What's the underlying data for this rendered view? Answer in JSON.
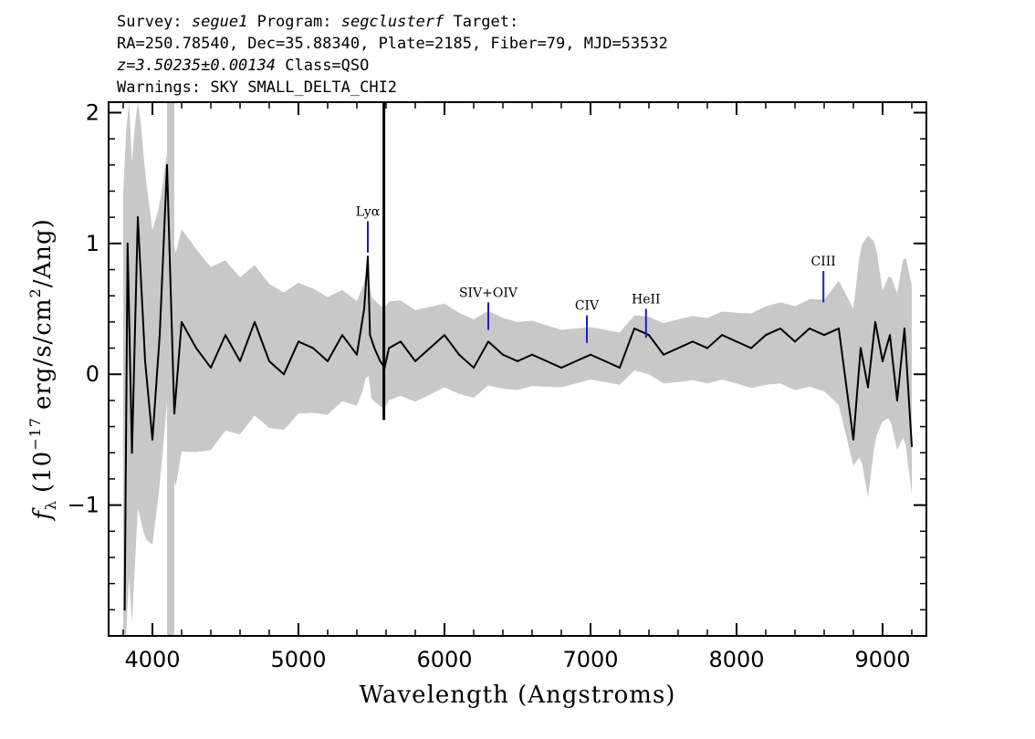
{
  "header": {
    "survey_label": "Survey:",
    "survey": "segue1",
    "program_label": "Program:",
    "program": "segclusterf",
    "target_label": "Target:",
    "line2": "RA=250.78540, Dec=35.88340, Plate=2185, Fiber=79, MJD=53532",
    "redshift": "z=3.50235±0.00134",
    "class_text": "Class=QSO",
    "warnings": "Warnings: SKY SMALL_DELTA_CHI2"
  },
  "chart_data": {
    "type": "line",
    "title": "",
    "xlabel": "Wavelength (Angstroms)",
    "ylabel_prefix": "f",
    "ylabel_sub": "λ",
    "ylabel_rest": "(10",
    "ylabel_exp": "−17",
    "ylabel_tail": "erg/s/cm",
    "ylabel_sq": "2",
    "ylabel_end": "/Ang)",
    "xlim": [
      3700,
      9300
    ],
    "ylim": [
      -2.0,
      2.08
    ],
    "x_ticks": [
      4000,
      5000,
      6000,
      7000,
      8000,
      9000
    ],
    "x_tick_labels": [
      "4000",
      "5000",
      "6000",
      "7000",
      "8000",
      "9000"
    ],
    "y_ticks": [
      -1,
      0,
      1,
      2
    ],
    "y_tick_labels": [
      "−1",
      "0",
      "1",
      "2"
    ],
    "grid": false,
    "colors": {
      "flux": "#000000",
      "error": "#c8c8c8",
      "lines": "#1a1acc"
    },
    "series": [
      {
        "role": "flux",
        "x": [
          3810,
          3830,
          3860,
          3900,
          3950,
          4000,
          4050,
          4100,
          4150,
          4200,
          4300,
          4400,
          4500,
          4600,
          4700,
          4800,
          4900,
          5000,
          5100,
          5200,
          5300,
          5400,
          5450,
          5475,
          5490,
          5520,
          5560,
          5590,
          5620,
          5700,
          5800,
          5900,
          6000,
          6100,
          6200,
          6300,
          6400,
          6500,
          6600,
          6700,
          6800,
          6900,
          7000,
          7100,
          7200,
          7300,
          7400,
          7500,
          7600,
          7700,
          7800,
          7900,
          8000,
          8100,
          8200,
          8300,
          8400,
          8500,
          8600,
          8700,
          8800,
          8850,
          8900,
          8950,
          9000,
          9050,
          9100,
          9150,
          9200
        ],
        "y": [
          -1.8,
          1.0,
          -0.6,
          1.2,
          0.1,
          -0.5,
          0.3,
          1.6,
          -0.3,
          0.4,
          0.2,
          0.05,
          0.3,
          0.1,
          0.4,
          0.1,
          0.0,
          0.25,
          0.2,
          0.1,
          0.3,
          0.15,
          0.5,
          0.9,
          0.3,
          0.2,
          0.1,
          0.05,
          0.2,
          0.25,
          0.1,
          0.2,
          0.3,
          0.15,
          0.05,
          0.25,
          0.15,
          0.1,
          0.15,
          0.1,
          0.05,
          0.1,
          0.15,
          0.1,
          0.05,
          0.35,
          0.3,
          0.15,
          0.2,
          0.25,
          0.2,
          0.3,
          0.25,
          0.2,
          0.3,
          0.35,
          0.25,
          0.35,
          0.3,
          0.35,
          -0.5,
          0.2,
          -0.1,
          0.4,
          0.1,
          0.3,
          -0.2,
          0.35,
          -0.55
        ]
      },
      {
        "role": "error",
        "x": [
          3800,
          3900,
          4000,
          4100,
          4200,
          4400,
          4600,
          4800,
          5000,
          5200,
          5400,
          5600,
          5800,
          6000,
          6200,
          6400,
          6600,
          6800,
          7000,
          7200,
          7400,
          7600,
          7800,
          8000,
          8200,
          8400,
          8600,
          8800,
          8900,
          9000,
          9100,
          9200
        ],
        "y": [
          2.0,
          1.6,
          1.2,
          0.95,
          0.85,
          0.7,
          0.6,
          0.55,
          0.5,
          0.45,
          0.4,
          0.38,
          0.35,
          0.32,
          0.3,
          0.27,
          0.25,
          0.22,
          0.2,
          0.2,
          0.22,
          0.24,
          0.25,
          0.27,
          0.3,
          0.32,
          0.35,
          0.6,
          1.0,
          0.5,
          0.6,
          0.8
        ]
      }
    ],
    "spikes": [
      {
        "x": 5585,
        "y0": -0.35,
        "y1": 2.08
      }
    ],
    "masked_regions": [
      {
        "x0": 4100,
        "x1": 4150
      }
    ],
    "emission_lines": [
      {
        "name": "Lyα",
        "x": 5475,
        "y0": 0.93,
        "y1": 1.17
      },
      {
        "name": "SIV+OIV",
        "x": 6300,
        "y0": 0.34,
        "y1": 0.55
      },
      {
        "name": "CIV",
        "x": 6975,
        "y0": 0.24,
        "y1": 0.45
      },
      {
        "name": "HeII",
        "x": 7380,
        "y0": 0.28,
        "y1": 0.5
      },
      {
        "name": "CIII",
        "x": 8595,
        "y0": 0.55,
        "y1": 0.79
      }
    ]
  }
}
